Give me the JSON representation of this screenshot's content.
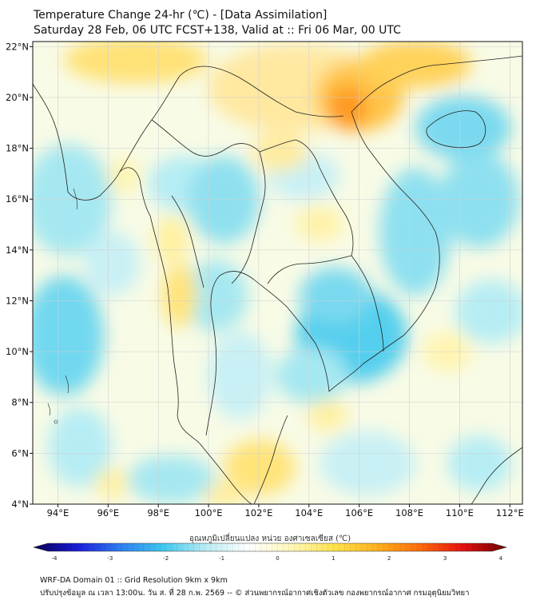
{
  "header": {
    "title": "Temperature Change 24-hr (℃) - [Data Assimilation]",
    "subtitle": "Saturday 28 Feb, 06 UTC FCST+138, Valid at :: Fri 06 Mar, 00 UTC"
  },
  "map": {
    "lat_labels": [
      "22°N",
      "20°N",
      "18°N",
      "16°N",
      "14°N",
      "12°N",
      "10°N",
      "8°N",
      "6°N",
      "4°N"
    ],
    "lon_labels": [
      "94°E",
      "96°E",
      "98°E",
      "100°E",
      "102°E",
      "104°E",
      "106°E",
      "108°E",
      "110°E",
      "112°E"
    ],
    "lat_range": [
      4,
      22.2
    ],
    "lon_range": [
      93,
      112.5
    ],
    "grid": true,
    "colors": {
      "land_border": "#222222",
      "gridline": "#cfcfcf"
    }
  },
  "colorbar": {
    "label": "อุณหภูมิเปลี่ยนแปลง หน่วย องศาเซลเซียส (℃)",
    "ticks": [
      "-4",
      "-3",
      "-2",
      "-1",
      "0",
      "1",
      "2",
      "3",
      "4"
    ],
    "range": [
      -4,
      4
    ],
    "colors": [
      "#08004f",
      "#1a1ad6",
      "#2f7cf0",
      "#3cc7ee",
      "#b9ecf4",
      "#ffffff",
      "#fff7b8",
      "#ffe24a",
      "#ffb11c",
      "#ff6a0a",
      "#e31010",
      "#6e0000"
    ]
  },
  "footer": {
    "line1": "WRF-DA Domain 01 :: Grid Resolution 9km x 9km",
    "line2": "ปรับปรุงข้อมูล ณ เวลา 13:00น. วัน ส. ที่ 28 ก.พ. 2569 -- © ส่วนพยากรณ์อากาศเชิงตัวเลข กองพยากรณ์อากาศ กรมอุตุนิยมวิทยา"
  }
}
